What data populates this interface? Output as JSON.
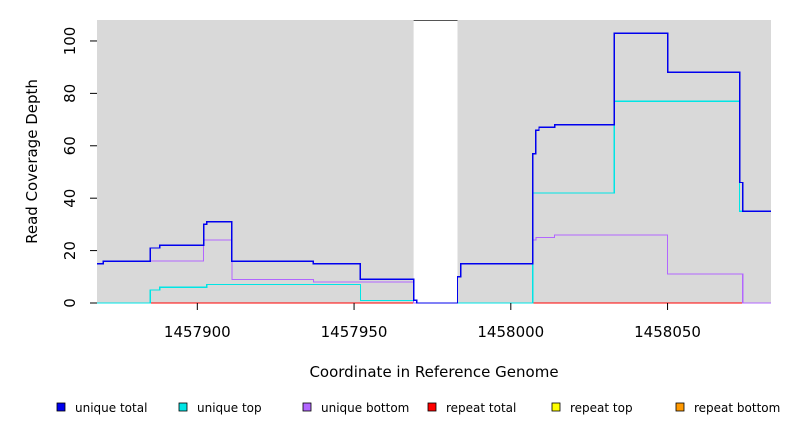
{
  "chart_data": {
    "type": "line",
    "xlabel": "Coordinate in Reference Genome",
    "ylabel": "Read Coverage Depth",
    "xlim": [
      1457868,
      1458083
    ],
    "ylim": [
      0,
      108
    ],
    "x_ticks": [
      1457900,
      1457950,
      1458000,
      1458050
    ],
    "y_ticks": [
      0,
      20,
      40,
      60,
      80,
      100
    ],
    "gap_region": [
      1457969,
      1457983
    ],
    "background_color": "#d9d9d9",
    "legend_position": "bottom",
    "series": [
      {
        "name": "unique total",
        "color": "#0000ee",
        "points": [
          [
            1457868,
            15
          ],
          [
            1457870,
            16
          ],
          [
            1457885,
            21
          ],
          [
            1457888,
            22
          ],
          [
            1457902,
            30
          ],
          [
            1457903,
            31
          ],
          [
            1457911,
            16
          ],
          [
            1457937,
            15
          ],
          [
            1457952,
            9
          ],
          [
            1457969,
            1
          ],
          [
            1457970,
            0
          ],
          [
            1457983,
            10
          ],
          [
            1457984,
            15
          ],
          [
            1458007,
            57
          ],
          [
            1458008,
            66
          ],
          [
            1458009,
            67
          ],
          [
            1458014,
            68
          ],
          [
            1458033,
            103
          ],
          [
            1458050,
            88
          ],
          [
            1458073,
            46
          ],
          [
            1458074,
            35
          ],
          [
            1458083,
            35
          ]
        ]
      },
      {
        "name": "unique top",
        "color": "#00e5e5",
        "points": [
          [
            1457868,
            0
          ],
          [
            1457885,
            5
          ],
          [
            1457888,
            6
          ],
          [
            1457903,
            7
          ],
          [
            1457952,
            1
          ],
          [
            1457970,
            0
          ],
          [
            1457983,
            0
          ],
          [
            1458007,
            42
          ],
          [
            1458033,
            77
          ],
          [
            1458073,
            35
          ],
          [
            1458083,
            35
          ]
        ]
      },
      {
        "name": "unique bottom",
        "color": "#b266ff",
        "points": [
          [
            1457868,
            15
          ],
          [
            1457870,
            16
          ],
          [
            1457902,
            24
          ],
          [
            1457911,
            9
          ],
          [
            1457937,
            8
          ],
          [
            1457969,
            0
          ],
          [
            1457983,
            10
          ],
          [
            1457984,
            15
          ],
          [
            1458007,
            24
          ],
          [
            1458008,
            25
          ],
          [
            1458014,
            26
          ],
          [
            1458050,
            11
          ],
          [
            1458074,
            0
          ],
          [
            1458083,
            0
          ]
        ]
      },
      {
        "name": "repeat total",
        "color": "#ff0000",
        "points": [
          [
            1457868,
            0
          ],
          [
            1458083,
            0
          ]
        ]
      },
      {
        "name": "repeat top",
        "color": "#ffff00",
        "points": [
          [
            1457868,
            0
          ],
          [
            1458083,
            0
          ]
        ]
      },
      {
        "name": "repeat bottom",
        "color": "#ff9900",
        "points": [
          [
            1457868,
            0
          ],
          [
            1458083,
            0
          ]
        ]
      }
    ]
  }
}
